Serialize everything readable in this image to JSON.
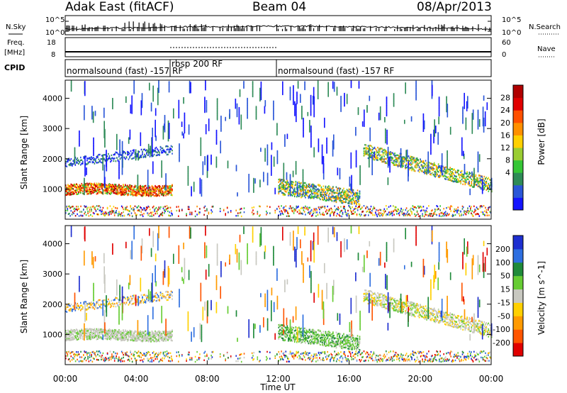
{
  "header": {
    "site": "Adak East (fitACF)",
    "beam": "Beam 04",
    "date": "08/Apr/2013"
  },
  "noise_panel": {
    "left_label": "N.Sky",
    "right_label": "N.Search",
    "ticks": [
      "10^5",
      "10^0"
    ]
  },
  "freq_panel": {
    "left_label_1": "Freq.",
    "left_label_2": "[MHz]",
    "left_ticks": [
      "18",
      "8"
    ],
    "right_label": "Nave",
    "right_ticks": [
      "60",
      "0"
    ]
  },
  "cpid": {
    "label": "CPID",
    "segments": [
      {
        "text": "normalsound (fast) -157 RF",
        "start_hour": 0,
        "end_hour": 6
      },
      {
        "text": "rbsp 200 RF",
        "start_hour": 6,
        "end_hour": 12
      },
      {
        "text": "normalsound (fast) -157 RF",
        "start_hour": 12,
        "end_hour": 24
      }
    ]
  },
  "power_panel": {
    "ylabel": "Slant Range [km]",
    "yticks": [
      1000,
      2000,
      3000,
      4000
    ],
    "colorbar_title": "Power [dB]",
    "colorbar_ticks": [
      "28",
      "24",
      "20",
      "16",
      "12",
      "8",
      "4"
    ],
    "colors": [
      "#1414ff",
      "#2a56d8",
      "#2e8b57",
      "#36c636",
      "#9acd32",
      "#ffd000",
      "#ff9000",
      "#ff5000",
      "#e00000",
      "#b00000"
    ]
  },
  "velocity_panel": {
    "ylabel": "Slant Range [km]",
    "yticks": [
      1000,
      2000,
      3000,
      4000
    ],
    "colorbar_title": "Velocity [m s^-1]",
    "colorbar_ticks": [
      "200",
      "100",
      "50",
      "15",
      "-15",
      "-50",
      "-100",
      "-200"
    ],
    "colors": [
      "#1e2fd0",
      "#2e6fe0",
      "#1f8a3a",
      "#66cc33",
      "#c8c8c0",
      "#ffd000",
      "#ff9a00",
      "#ff5500",
      "#e00000"
    ]
  },
  "x_axis": {
    "title": "Time UT",
    "ticks": [
      "00:00",
      "04:00",
      "08:00",
      "12:00",
      "16:00",
      "20:00",
      "00:00"
    ]
  },
  "chart_data": {
    "type": "heatmap",
    "title": "Adak East (fitACF)  Beam 04  08/Apr/2013",
    "xlabel": "Time UT",
    "ylabel": "Slant Range [km]",
    "xlim_hours": [
      0,
      24
    ],
    "ylim_km": [
      0,
      4600
    ],
    "series": [
      {
        "name": "Power [dB]",
        "range": [
          0,
          30
        ]
      },
      {
        "name": "Velocity [m s^-1]",
        "range": [
          -200,
          200
        ]
      }
    ]
  }
}
